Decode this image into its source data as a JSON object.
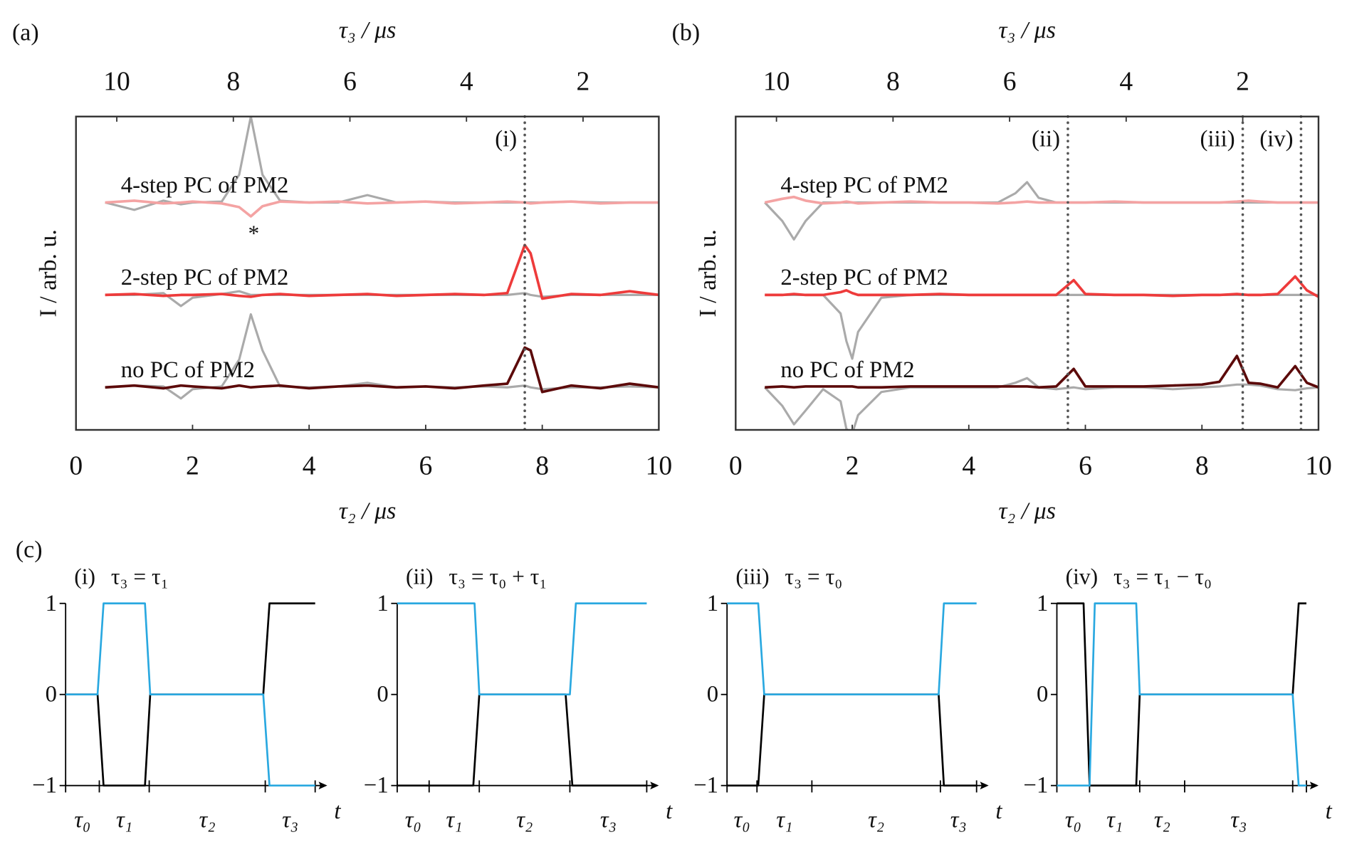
{
  "chart_data": [
    {
      "type": "line",
      "panel_label": "(a)",
      "xlabel": "τ₂ / μs",
      "x2label": "τ₃ / μs",
      "ylabel": "I / arb. u.",
      "xlim": [
        0,
        10
      ],
      "xticks": [
        0,
        2,
        4,
        6,
        8,
        10
      ],
      "x2lim": [
        10.7,
        0.7
      ],
      "x2ticks": [
        10,
        8,
        6,
        4,
        2
      ],
      "ylim": [
        -0.46,
        2.93
      ],
      "x": [
        0.5,
        1,
        1.5,
        1.8,
        2,
        2.5,
        2.8,
        3,
        3.2,
        3.5,
        4,
        4.5,
        5,
        5.5,
        6,
        6.5,
        7,
        7.4,
        7.7,
        7.8,
        8,
        8.5,
        9,
        9.5,
        10
      ],
      "series": [
        {
          "color": "#aaaaaa",
          "values": [
            2.0,
            1.92,
            2.02,
            1.98,
            2.0,
            2.01,
            2.3,
            2.93,
            2.3,
            2.02,
            2.0,
            2.0,
            2.08,
            2.0,
            2.01,
            2.0,
            2.0,
            2.0,
            2.0,
            2.0,
            2.0,
            2.01,
            2.0,
            2.0,
            2.0
          ]
        },
        {
          "name": "4-step PC of PM2",
          "color": "#f4a3a3",
          "values": [
            2.0,
            2.02,
            1.99,
            2.0,
            2.01,
            1.99,
            1.95,
            1.85,
            1.96,
            2.01,
            2.0,
            2.01,
            1.99,
            2.0,
            2.01,
            1.99,
            2.0,
            2.01,
            2.0,
            1.99,
            2.0,
            2.01,
            1.99,
            2.0,
            2.0
          ]
        },
        {
          "color": "#aaaaaa",
          "values": [
            1.0,
            1.0,
            1.02,
            0.88,
            0.97,
            1.01,
            1.04,
            1.0,
            1.0,
            1.0,
            1.0,
            1.0,
            1.0,
            1.0,
            1.0,
            1.0,
            1.0,
            1.0,
            1.02,
            1.0,
            0.98,
            1.0,
            1.0,
            1.0,
            1.0
          ]
        },
        {
          "name": "2-step PC of PM2",
          "color": "#ee3b3b",
          "values": [
            1.0,
            1.01,
            0.99,
            1.0,
            1.0,
            1.01,
            0.99,
            0.98,
            1.0,
            1.01,
            0.99,
            1.0,
            1.01,
            0.99,
            1.0,
            1.01,
            1.0,
            1.02,
            1.54,
            1.45,
            0.96,
            1.01,
            1.0,
            1.04,
            1.0
          ]
        },
        {
          "color": "#aaaaaa",
          "values": [
            0.0,
            0.02,
            0.01,
            -0.12,
            -0.02,
            0.01,
            0.3,
            0.79,
            0.4,
            0.01,
            0.0,
            0.01,
            0.05,
            0.0,
            0.01,
            0.0,
            0.01,
            0.0,
            0.02,
            0.0,
            -0.02,
            0.0,
            0.0,
            0.01,
            0.0
          ]
        },
        {
          "name": "no PC of PM2",
          "color": "#5c0a0a",
          "values": [
            0.0,
            0.02,
            -0.01,
            0.02,
            0.01,
            -0.01,
            0.02,
            0.0,
            0.01,
            0.02,
            -0.01,
            0.01,
            0.02,
            0.0,
            0.01,
            -0.01,
            0.02,
            0.04,
            0.43,
            0.4,
            -0.05,
            0.02,
            -0.01,
            0.04,
            0.0
          ]
        }
      ],
      "vlines": [
        {
          "x": 7.7,
          "label": "(i)"
        }
      ],
      "annotations": [
        {
          "text": "*",
          "x": 3.05,
          "y": 1.72
        }
      ]
    },
    {
      "type": "line",
      "panel_label": "(b)",
      "xlabel": "τ₂ / μs",
      "x2label": "τ₃ / μs",
      "ylabel": "I / arb. u.",
      "xlim": [
        0,
        10
      ],
      "xticks": [
        0,
        2,
        4,
        6,
        8,
        10
      ],
      "x2lim": [
        10.7,
        0.7
      ],
      "x2ticks": [
        10,
        8,
        6,
        4,
        2
      ],
      "ylim": [
        -0.46,
        2.93
      ],
      "x": [
        0.5,
        0.8,
        1,
        1.2,
        1.5,
        1.8,
        1.9,
        2,
        2.1,
        2.5,
        3,
        3.5,
        4,
        4.5,
        4.8,
        5,
        5.2,
        5.5,
        5.8,
        6,
        6.5,
        7,
        7.5,
        8,
        8.3,
        8.6,
        8.8,
        9,
        9.3,
        9.6,
        9.8,
        10
      ],
      "series": [
        {
          "color": "#aaaaaa",
          "values": [
            2.0,
            1.8,
            1.6,
            1.8,
            2.0,
            2.0,
            2.0,
            2.0,
            2.0,
            2.0,
            2.0,
            2.0,
            2.0,
            2.0,
            2.1,
            2.22,
            2.05,
            2.0,
            2.0,
            2.0,
            2.0,
            2.0,
            2.0,
            2.0,
            2.0,
            2.0,
            2.0,
            2.0,
            2.0,
            2.0,
            2.0,
            2.0
          ]
        },
        {
          "name": "4-step PC of PM2",
          "color": "#f4a3a3",
          "values": [
            2.0,
            2.04,
            2.06,
            2.02,
            1.99,
            2.0,
            2.01,
            2.0,
            1.99,
            2.0,
            2.01,
            2.0,
            2.0,
            1.99,
            2.0,
            2.01,
            2.0,
            2.0,
            2.0,
            2.0,
            2.01,
            2.0,
            2.0,
            2.0,
            2.0,
            2.01,
            2.02,
            2.01,
            2.0,
            2.0,
            2.0,
            2.0
          ]
        },
        {
          "color": "#aaaaaa",
          "values": [
            1.0,
            1.0,
            1.0,
            1.0,
            1.0,
            0.8,
            0.5,
            0.31,
            0.6,
            0.97,
            1.0,
            1.0,
            1.0,
            1.0,
            1.0,
            1.0,
            1.0,
            1.0,
            1.0,
            1.0,
            1.0,
            1.0,
            1.0,
            1.0,
            1.0,
            1.0,
            1.0,
            1.0,
            1.0,
            1.0,
            1.0,
            1.0
          ]
        },
        {
          "name": "2-step PC of PM2",
          "color": "#ee3b3b",
          "values": [
            1.0,
            1.0,
            1.01,
            1.0,
            1.0,
            1.03,
            1.05,
            1.02,
            1.0,
            1.0,
            1.0,
            1.01,
            1.0,
            1.0,
            1.0,
            1.0,
            1.0,
            1.0,
            1.16,
            1.01,
            1.0,
            1.0,
            0.99,
            1.0,
            1.0,
            1.01,
            1.0,
            1.0,
            1.01,
            1.2,
            1.05,
            0.98
          ]
        },
        {
          "color": "#aaaaaa",
          "values": [
            0.0,
            -0.2,
            -0.4,
            -0.25,
            -0.02,
            -0.15,
            -0.45,
            -0.5,
            -0.3,
            -0.05,
            0.0,
            0.0,
            0.0,
            0.0,
            0.05,
            0.1,
            0.0,
            -0.02,
            0.0,
            -0.02,
            0.0,
            0.0,
            -0.02,
            0.0,
            0.01,
            0.03,
            0.03,
            0.02,
            -0.02,
            -0.03,
            -0.01,
            0.0
          ]
        },
        {
          "name": "no PC of PM2",
          "color": "#5c0a0a",
          "values": [
            0.0,
            0.01,
            0.0,
            0.01,
            0.01,
            0.01,
            0.01,
            0.01,
            0.0,
            0.0,
            0.01,
            0.01,
            0.01,
            0.01,
            0.01,
            0.01,
            0.0,
            0.01,
            0.2,
            0.01,
            0.01,
            0.01,
            0.02,
            0.03,
            0.06,
            0.34,
            0.05,
            0.04,
            0.0,
            0.23,
            0.05,
            0.0
          ]
        }
      ],
      "vlines": [
        {
          "x": 5.7,
          "label": "(ii)"
        },
        {
          "x": 8.7,
          "label": "(iii)"
        },
        {
          "x": 9.7,
          "label": "(iv)"
        }
      ]
    },
    {
      "type": "line",
      "panel_label": "(c)",
      "label": "(i)",
      "title": "τ₃ = τ₁",
      "xlabel": "t",
      "xlim": [
        0,
        10
      ],
      "ylim": [
        -1,
        1
      ],
      "yticks": [
        1,
        0,
        {
          "value": -1,
          "label": "−1"
        }
      ],
      "xticks": [
        0,
        1.35,
        3.35,
        8,
        10
      ],
      "segment_labels": [
        "τ₀",
        "τ₁",
        "τ₂",
        "τ₃"
      ],
      "series": [
        {
          "color": "#000000",
          "x": [
            0,
            1.28,
            1.52,
            3.18,
            3.39,
            7.92,
            8.17,
            10
          ],
          "values": [
            0,
            0,
            -1,
            -1,
            0,
            0,
            1,
            1
          ]
        },
        {
          "color": "#29a8e0",
          "x": [
            0,
            1.28,
            1.52,
            3.18,
            3.39,
            7.92,
            8.17,
            10
          ],
          "values": [
            0,
            0,
            1,
            1,
            0,
            0,
            -1,
            -1
          ]
        }
      ]
    },
    {
      "type": "line",
      "label": "(ii)",
      "title": "τ₃ = τ₀ + τ₁",
      "xlabel": "t",
      "xlim": [
        0,
        10
      ],
      "ylim": [
        -1,
        1
      ],
      "yticks": [
        1,
        0,
        {
          "value": -1,
          "label": "−1"
        }
      ],
      "xticks": [
        0,
        1.28,
        3.29,
        6.92,
        10
      ],
      "segment_labels": [
        "τ₀",
        "τ₁",
        "τ₂",
        "τ₃"
      ],
      "series": [
        {
          "color": "#000000",
          "x": [
            0,
            3.05,
            3.29,
            6.75,
            7.02,
            10
          ],
          "values": [
            -1,
            -1,
            0,
            0,
            -1,
            -1
          ]
        },
        {
          "color": "#29a8e0",
          "x": [
            0,
            3.1,
            3.29,
            6.92,
            7.16,
            10
          ],
          "values": [
            1,
            1,
            0,
            0,
            1,
            1
          ]
        }
      ]
    },
    {
      "type": "line",
      "label": "(iii)",
      "title": "τ₃ = τ₀",
      "xlabel": "t",
      "xlim": [
        0,
        10
      ],
      "ylim": [
        -1,
        1
      ],
      "yticks": [
        1,
        0,
        {
          "value": -1,
          "label": "−1"
        }
      ],
      "xticks": [
        0,
        1.2,
        3.4,
        8.55,
        10
      ],
      "segment_labels": [
        "τ₀",
        "τ₁",
        "τ₂",
        "τ₃"
      ],
      "series": [
        {
          "color": "#000000",
          "x": [
            0,
            1.25,
            1.49,
            8.48,
            8.69,
            10
          ],
          "values": [
            -1,
            -1,
            0,
            0,
            -1,
            -1
          ]
        },
        {
          "color": "#29a8e0",
          "x": [
            0,
            1.25,
            1.49,
            8.48,
            8.69,
            10
          ],
          "values": [
            1,
            1,
            0,
            0,
            1,
            1
          ]
        }
      ]
    },
    {
      "type": "line",
      "label": "(iv)",
      "title": "τ₃ = τ₁ − τ₀",
      "xlabel": "t",
      "xlim": [
        0,
        10
      ],
      "ylim": [
        -1,
        1
      ],
      "yticks": [
        1,
        0,
        {
          "value": -1,
          "label": "−1"
        }
      ],
      "xticks": [
        0,
        1.31,
        3.32,
        5.12,
        9.45,
        10
      ],
      "segment_labels": [
        "τ₀",
        "τ₁",
        "τ₂",
        "τ₃",
        null
      ],
      "series": [
        {
          "color": "#000000",
          "x": [
            0,
            1.07,
            1.31,
            3.18,
            3.32,
            9.45,
            9.69,
            10
          ],
          "values": [
            1,
            1,
            -1,
            -1,
            0,
            0,
            1,
            1
          ]
        },
        {
          "color": "#29a8e0",
          "x": [
            0,
            1.31,
            1.52,
            3.18,
            3.32,
            9.45,
            9.69,
            10
          ],
          "values": [
            -1,
            -1,
            1,
            1,
            0,
            0,
            -1,
            -1
          ]
        }
      ]
    }
  ]
}
